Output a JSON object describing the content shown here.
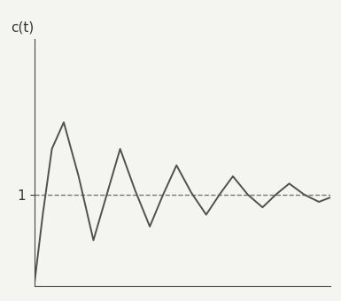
{
  "chart_data": {
    "type": "line",
    "y_label": "c(t)",
    "x": [
      0,
      0.3,
      0.6,
      1.0,
      1.5,
      2.0,
      2.45,
      2.9,
      3.4,
      3.9,
      4.35,
      4.8,
      5.3,
      5.8,
      6.25,
      6.7,
      7.2,
      7.7,
      8.15,
      8.6,
      9.1,
      9.6,
      10
    ],
    "values": [
      0,
      0.8,
      1.5,
      1.79,
      1.2,
      0.5,
      1.0,
      1.5,
      1.05,
      0.65,
      1.0,
      1.32,
      1.02,
      0.78,
      1.0,
      1.2,
      1.0,
      0.86,
      1.0,
      1.12,
      1.0,
      0.92,
      0.97
    ],
    "color": "#505050",
    "line_style": "solid",
    "xlim": [
      0,
      10
    ],
    "ylim": [
      0,
      2.7
    ],
    "yticks": [
      1
    ],
    "grid": true,
    "tick_labels": "y"
  }
}
